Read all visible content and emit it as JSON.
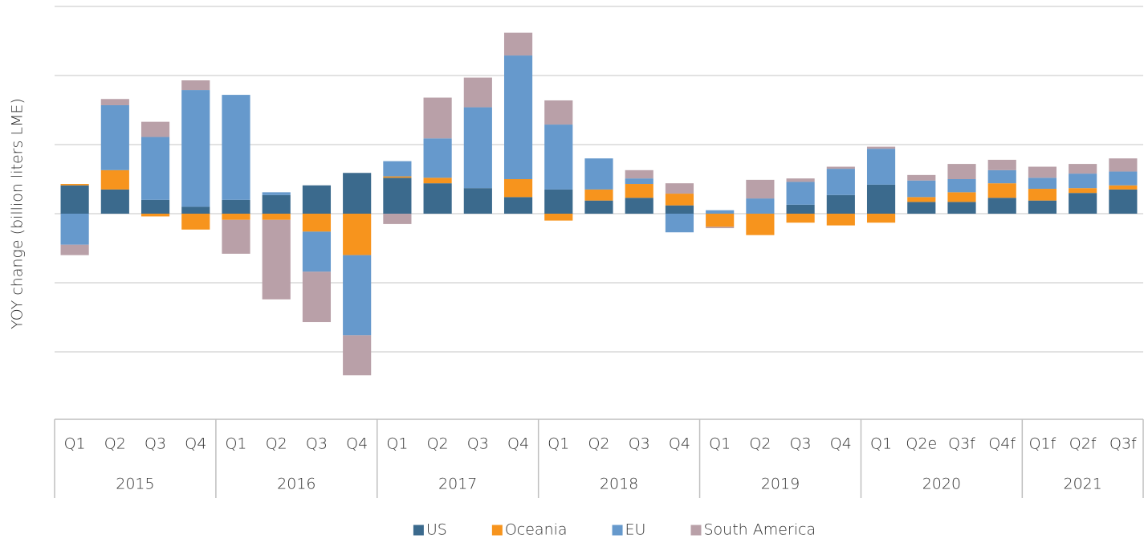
{
  "chart_data": {
    "type": "stacked_bar",
    "y_label": "YOY change (billion liters LME)",
    "groups": [
      {
        "name": "2015",
        "categories": [
          "Q1",
          "Q2",
          "Q3",
          "Q4"
        ]
      },
      {
        "name": "2016",
        "categories": [
          "Q1",
          "Q2",
          "Q3",
          "Q4"
        ]
      },
      {
        "name": "2017",
        "categories": [
          "Q1",
          "Q2",
          "Q3",
          "Q4"
        ]
      },
      {
        "name": "2018",
        "categories": [
          "Q1",
          "Q2",
          "Q3",
          "Q4"
        ]
      },
      {
        "name": "2019",
        "categories": [
          "Q1",
          "Q2",
          "Q3",
          "Q4"
        ]
      },
      {
        "name": "2020",
        "categories": [
          "Q1",
          "Q2e",
          "Q3f",
          "Q4f"
        ]
      },
      {
        "name": "2021",
        "categories": [
          "Q1f",
          "Q2f",
          "Q3f"
        ]
      }
    ],
    "series": [
      {
        "name": "US",
        "color": "#3b6a8d",
        "values": [
          0.41,
          0.35,
          0.2,
          0.1,
          0.2,
          0.27,
          0.41,
          0.59,
          0.52,
          0.44,
          0.37,
          0.24,
          0.35,
          0.19,
          0.23,
          0.12,
          0,
          0,
          0.13,
          0.27,
          0.42,
          0.17,
          0.17,
          0.23,
          0.19,
          0.3,
          0.35
        ]
      },
      {
        "name": "Oceania",
        "color": "#f7941d",
        "values": [
          0.02,
          0.28,
          -0.04,
          -0.23,
          -0.09,
          -0.09,
          -0.26,
          -0.6,
          0.02,
          0.08,
          0,
          0.26,
          -0.1,
          0.16,
          0.2,
          0.17,
          -0.19,
          -0.31,
          -0.13,
          -0.17,
          -0.13,
          0.07,
          0.14,
          0.21,
          0.17,
          0.07,
          0.06
        ]
      },
      {
        "name": "EU",
        "color": "#6699cc",
        "values": [
          -0.45,
          0.94,
          0.91,
          1.69,
          1.52,
          0.04,
          -0.58,
          -1.16,
          0.22,
          0.57,
          1.17,
          1.79,
          0.94,
          0.45,
          0.08,
          -0.27,
          0.05,
          0.22,
          0.33,
          0.38,
          0.52,
          0.24,
          0.19,
          0.19,
          0.16,
          0.21,
          0.2
        ]
      },
      {
        "name": "South America",
        "color": "#b9a0a8",
        "values": [
          -0.15,
          0.09,
          0.22,
          0.14,
          -0.49,
          -1.15,
          -0.73,
          -0.58,
          -0.15,
          0.59,
          0.43,
          0.33,
          0.35,
          0,
          0.12,
          0.15,
          -0.02,
          0.27,
          0.05,
          0.03,
          0.03,
          0.08,
          0.22,
          0.15,
          0.16,
          0.14,
          0.19
        ]
      }
    ],
    "ylim": [
      -3,
      3
    ],
    "yticks": [
      -2,
      -1,
      0,
      1,
      2,
      3
    ],
    "grid": true,
    "legend": "bottom"
  }
}
